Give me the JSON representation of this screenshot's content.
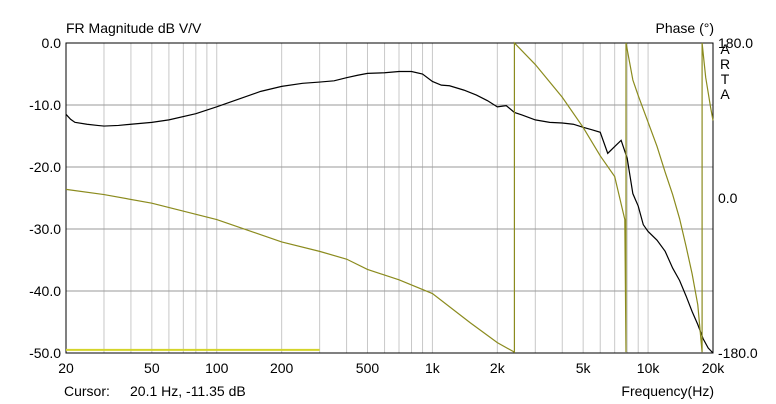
{
  "chart_data": {
    "type": "line",
    "title": "FR Magnitude dB V/V",
    "right_axis_title": "Phase (°)",
    "brand_vertical": [
      "A",
      "R",
      "T",
      "A"
    ],
    "xlabel": "Frequency(Hz)",
    "x_scale": "log",
    "xlim": [
      20,
      20000
    ],
    "x_ticks": [
      20,
      50,
      100,
      200,
      500,
      1000,
      2000,
      5000,
      10000,
      20000
    ],
    "x_tick_labels": [
      "20",
      "50",
      "100",
      "200",
      "500",
      "1k",
      "2k",
      "5k",
      "10k",
      "20k"
    ],
    "ylim": [
      -50,
      0
    ],
    "y_ticks": [
      0,
      -10,
      -20,
      -30,
      -40,
      -50
    ],
    "y_tick_labels": [
      "0.0",
      "-10.0",
      "-20.0",
      "-30.0",
      "-40.0",
      "-50.0"
    ],
    "y2lim": [
      -180,
      180
    ],
    "y2_ticks": [
      180,
      0,
      -180
    ],
    "y2_tick_labels": [
      "180.0",
      "0.0",
      "-180.0"
    ],
    "grid": true,
    "series": [
      {
        "axis": "left",
        "color": "#000000",
        "points": [
          [
            20,
            -11.5
          ],
          [
            21,
            -12.3
          ],
          [
            22,
            -12.8
          ],
          [
            25,
            -13.1
          ],
          [
            28,
            -13.3
          ],
          [
            30,
            -13.4
          ],
          [
            35,
            -13.3
          ],
          [
            40,
            -13.1
          ],
          [
            50,
            -12.8
          ],
          [
            60,
            -12.4
          ],
          [
            80,
            -11.4
          ],
          [
            100,
            -10.3
          ],
          [
            130,
            -8.9
          ],
          [
            160,
            -7.8
          ],
          [
            200,
            -7.0
          ],
          [
            250,
            -6.5
          ],
          [
            300,
            -6.3
          ],
          [
            350,
            -6.1
          ],
          [
            400,
            -5.6
          ],
          [
            450,
            -5.2
          ],
          [
            500,
            -4.9
          ],
          [
            600,
            -4.8
          ],
          [
            700,
            -4.6
          ],
          [
            800,
            -4.6
          ],
          [
            900,
            -5.0
          ],
          [
            1000,
            -6.2
          ],
          [
            1100,
            -6.8
          ],
          [
            1200,
            -6.9
          ],
          [
            1400,
            -7.6
          ],
          [
            1600,
            -8.4
          ],
          [
            1800,
            -9.3
          ],
          [
            2000,
            -10.3
          ],
          [
            2200,
            -10.1
          ],
          [
            2400,
            -11.2
          ],
          [
            2600,
            -11.6
          ],
          [
            3000,
            -12.4
          ],
          [
            3500,
            -12.8
          ],
          [
            4000,
            -12.9
          ],
          [
            4500,
            -13.1
          ],
          [
            5000,
            -13.6
          ],
          [
            5500,
            -14.0
          ],
          [
            6000,
            -14.4
          ],
          [
            6500,
            -17.8
          ],
          [
            7000,
            -16.7
          ],
          [
            7500,
            -15.7
          ],
          [
            8000,
            -18.6
          ],
          [
            8500,
            -24.3
          ],
          [
            9000,
            -26.3
          ],
          [
            9500,
            -29.3
          ],
          [
            10000,
            -30.4
          ],
          [
            11000,
            -31.8
          ],
          [
            12000,
            -33.6
          ],
          [
            13000,
            -36.3
          ],
          [
            14000,
            -38.3
          ],
          [
            15000,
            -40.8
          ],
          [
            16000,
            -43.3
          ],
          [
            17000,
            -45.4
          ],
          [
            18000,
            -47.7
          ],
          [
            19000,
            -49.2
          ],
          [
            20000,
            -50.0
          ]
        ]
      },
      {
        "axis": "right",
        "color": "#8B8B1E",
        "points": [
          [
            20,
            10
          ],
          [
            30,
            4
          ],
          [
            50,
            -6
          ],
          [
            100,
            -25
          ],
          [
            200,
            -51
          ],
          [
            300,
            -62
          ],
          [
            400,
            -71
          ],
          [
            500,
            -83
          ],
          [
            700,
            -95
          ],
          [
            1000,
            -111
          ],
          [
            1500,
            -145
          ],
          [
            2000,
            -168
          ],
          [
            2400,
            -179
          ],
          [
            2400,
            180
          ],
          [
            3000,
            155
          ],
          [
            4000,
            117
          ],
          [
            5000,
            82
          ],
          [
            6000,
            49
          ],
          [
            7000,
            25
          ],
          [
            7800,
            -25
          ],
          [
            7900,
            -179
          ],
          [
            7900,
            180
          ],
          [
            8500,
            137
          ],
          [
            9000,
            119
          ],
          [
            10000,
            88
          ],
          [
            11000,
            60
          ],
          [
            12000,
            30
          ],
          [
            13000,
            4
          ],
          [
            14000,
            -24
          ],
          [
            15000,
            -56
          ],
          [
            16000,
            -88
          ],
          [
            17000,
            -124
          ],
          [
            17800,
            -179
          ],
          [
            17800,
            180
          ],
          [
            18500,
            140
          ],
          [
            19500,
            105
          ],
          [
            20000,
            90
          ]
        ]
      },
      {
        "axis": "left",
        "color": "#D4D42A",
        "points": [
          [
            20,
            -49.5
          ],
          [
            300,
            -49.5
          ]
        ]
      }
    ],
    "cursor": {
      "label": "Cursor:",
      "value": "20.1 Hz, -11.35 dB"
    }
  }
}
